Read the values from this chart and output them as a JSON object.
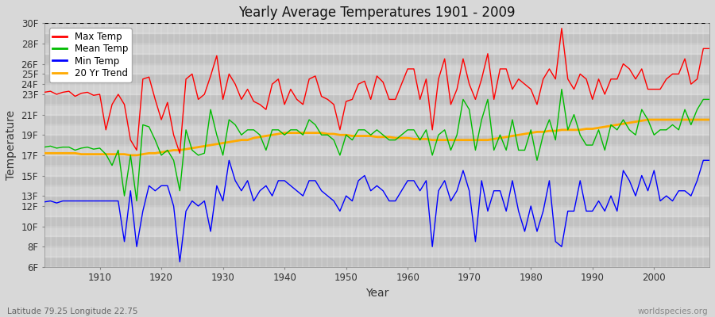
{
  "title": "Yearly Average Temperatures 1901 - 2009",
  "xlabel": "Year",
  "ylabel": "Temperature",
  "lat_lon_label": "Latitude 79.25 Longitude 22.75",
  "watermark": "worldspecies.org",
  "year_start": 1901,
  "year_end": 2009,
  "ylim": [
    6,
    30
  ],
  "ytick_pos": [
    6,
    8,
    10,
    12,
    13,
    15,
    17,
    19,
    21,
    23,
    24,
    25,
    26,
    28,
    30
  ],
  "ytick_lbl": [
    "6F",
    "8F",
    "10F",
    "12F",
    "13F",
    "15F",
    "17F",
    "19F",
    "21F",
    "23F",
    "24F",
    "25F",
    "26F",
    "28F",
    "30F"
  ],
  "max_temp_color": "#ff0000",
  "mean_temp_color": "#00bb00",
  "min_temp_color": "#0000ff",
  "trend_color": "#ffaa00",
  "legend_labels": [
    "Max Temp",
    "Mean Temp",
    "Min Temp",
    "20 Yr Trend"
  ],
  "max_temp": [
    23.2,
    23.3,
    23.0,
    23.2,
    23.3,
    22.8,
    23.1,
    23.2,
    22.9,
    23.0,
    19.5,
    22.0,
    23.0,
    22.0,
    18.5,
    17.5,
    24.5,
    24.7,
    22.5,
    20.5,
    22.2,
    19.0,
    17.2,
    24.5,
    25.0,
    22.5,
    23.0,
    24.8,
    26.8,
    22.5,
    25.0,
    24.0,
    22.5,
    23.5,
    22.3,
    22.0,
    21.5,
    24.0,
    24.5,
    22.0,
    23.5,
    22.5,
    22.0,
    24.5,
    24.8,
    22.8,
    22.5,
    22.0,
    19.5,
    22.3,
    22.5,
    24.0,
    24.3,
    22.5,
    24.8,
    24.2,
    22.5,
    22.5,
    24.0,
    25.5,
    25.5,
    22.5,
    24.5,
    19.5,
    24.5,
    26.5,
    22.0,
    23.5,
    26.5,
    24.0,
    22.5,
    24.5,
    27.0,
    22.5,
    25.5,
    25.5,
    23.5,
    24.5,
    24.0,
    23.5,
    22.0,
    24.5,
    25.5,
    24.5,
    29.5,
    24.5,
    23.5,
    25.0,
    24.5,
    22.5,
    24.5,
    23.0,
    24.5,
    24.5,
    26.0,
    25.5,
    24.5,
    25.5,
    23.5,
    23.5,
    23.5,
    24.5,
    25.0,
    25.0,
    26.5,
    24.0,
    24.5,
    27.5,
    27.5
  ],
  "mean_temp": [
    17.8,
    17.9,
    17.7,
    17.8,
    17.8,
    17.5,
    17.7,
    17.8,
    17.6,
    17.7,
    17.1,
    16.0,
    17.5,
    13.0,
    17.0,
    12.5,
    20.0,
    19.8,
    18.5,
    17.0,
    17.5,
    16.5,
    13.5,
    19.5,
    17.5,
    17.0,
    17.2,
    21.5,
    19.0,
    17.0,
    20.5,
    20.0,
    19.0,
    19.5,
    19.5,
    19.0,
    17.5,
    19.5,
    19.5,
    19.0,
    19.5,
    19.5,
    19.0,
    20.5,
    20.0,
    19.0,
    19.0,
    18.5,
    17.0,
    19.0,
    18.5,
    19.5,
    19.5,
    19.0,
    19.5,
    19.0,
    18.5,
    18.5,
    19.0,
    19.5,
    19.5,
    18.5,
    19.5,
    17.0,
    19.0,
    19.5,
    17.5,
    19.0,
    22.5,
    21.5,
    17.5,
    20.5,
    22.5,
    17.5,
    19.0,
    17.5,
    20.5,
    17.5,
    17.5,
    19.5,
    16.5,
    19.0,
    20.5,
    18.5,
    23.5,
    19.5,
    21.0,
    19.0,
    18.0,
    18.0,
    19.5,
    17.5,
    20.0,
    19.5,
    20.5,
    19.5,
    19.0,
    21.5,
    20.5,
    19.0,
    19.5,
    19.5,
    20.0,
    19.5,
    21.5,
    20.0,
    21.5,
    22.5,
    22.5
  ],
  "min_temp": [
    12.4,
    12.5,
    12.3,
    12.5,
    12.5,
    12.5,
    12.5,
    12.5,
    12.5,
    12.5,
    12.5,
    12.5,
    12.5,
    8.5,
    13.5,
    8.0,
    11.5,
    14.0,
    13.5,
    14.0,
    14.0,
    12.0,
    6.5,
    11.5,
    12.5,
    12.0,
    12.5,
    9.5,
    14.0,
    12.5,
    16.5,
    14.5,
    13.5,
    14.5,
    12.5,
    13.5,
    14.0,
    13.0,
    14.5,
    14.5,
    14.0,
    13.5,
    13.0,
    14.5,
    14.5,
    13.5,
    13.0,
    12.5,
    11.5,
    13.0,
    12.5,
    14.5,
    15.0,
    13.5,
    14.0,
    13.5,
    12.5,
    12.5,
    13.5,
    14.5,
    14.5,
    13.5,
    14.5,
    8.0,
    13.5,
    14.5,
    12.5,
    13.5,
    15.5,
    13.5,
    8.5,
    14.5,
    11.5,
    13.5,
    13.5,
    11.5,
    14.5,
    11.5,
    9.5,
    12.0,
    9.5,
    11.5,
    14.5,
    8.5,
    8.0,
    11.5,
    11.5,
    14.5,
    11.5,
    11.5,
    12.5,
    11.5,
    13.0,
    11.5,
    15.5,
    14.5,
    13.0,
    15.0,
    13.5,
    15.5,
    12.5,
    13.0,
    12.5,
    13.5,
    13.5,
    13.0,
    14.5,
    16.5,
    16.5
  ],
  "trend": [
    17.2,
    17.2,
    17.2,
    17.2,
    17.2,
    17.2,
    17.1,
    17.1,
    17.1,
    17.1,
    17.1,
    17.1,
    17.1,
    17.1,
    17.0,
    17.0,
    17.1,
    17.2,
    17.2,
    17.3,
    17.4,
    17.5,
    17.5,
    17.6,
    17.7,
    17.8,
    17.9,
    18.0,
    18.1,
    18.2,
    18.3,
    18.4,
    18.5,
    18.5,
    18.7,
    18.8,
    18.9,
    19.0,
    19.1,
    19.2,
    19.2,
    19.2,
    19.2,
    19.2,
    19.2,
    19.2,
    19.1,
    19.1,
    19.0,
    19.0,
    18.9,
    18.9,
    18.9,
    18.9,
    18.8,
    18.8,
    18.8,
    18.7,
    18.7,
    18.7,
    18.6,
    18.6,
    18.6,
    18.5,
    18.5,
    18.5,
    18.5,
    18.5,
    18.5,
    18.5,
    18.5,
    18.5,
    18.5,
    18.6,
    18.7,
    18.8,
    18.9,
    19.0,
    19.1,
    19.2,
    19.3,
    19.3,
    19.4,
    19.4,
    19.5,
    19.5,
    19.5,
    19.5,
    19.6,
    19.6,
    19.7,
    19.8,
    19.9,
    20.0,
    20.1,
    20.2,
    20.3,
    20.4,
    20.5,
    20.5,
    20.5,
    20.5,
    20.5,
    20.5,
    20.5,
    20.5,
    20.5,
    20.5,
    20.5
  ]
}
